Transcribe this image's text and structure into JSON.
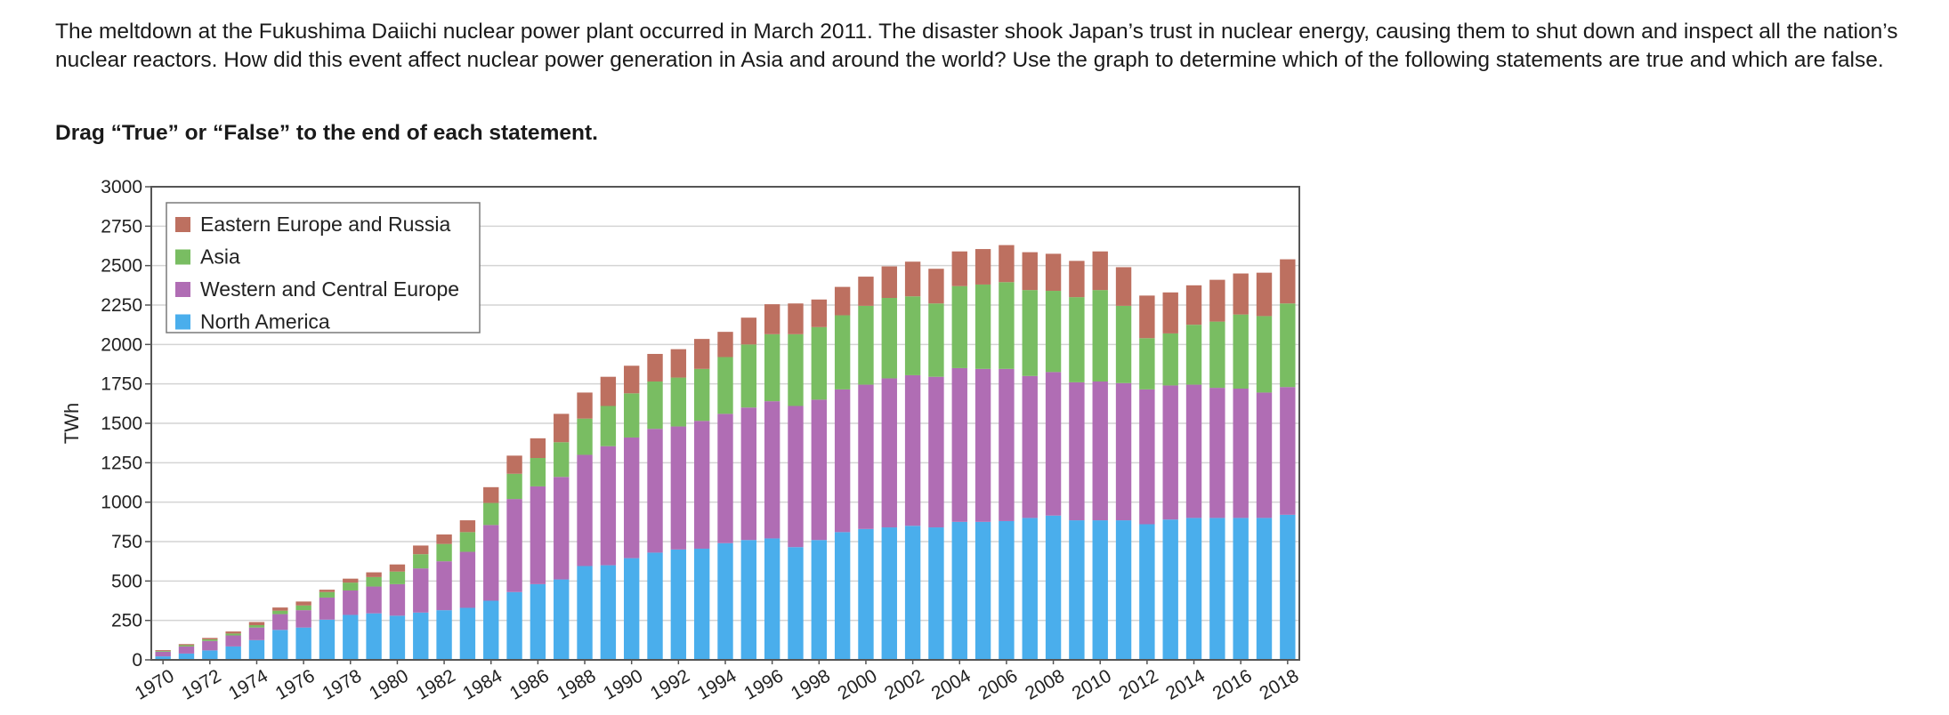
{
  "question": {
    "intro": "The meltdown at the Fukushima Daiichi nuclear power plant occurred in March 2011. The disaster shook Japan’s trust in nuclear energy, causing them to shut down and inspect all the nation’s nuclear reactors. How did this event affect nuclear power generation in Asia and around the world? Use the graph to determine which of the following statements are true and which are false.",
    "instruction": "Drag “True” or “False” to the end of each statement."
  },
  "chart_data": {
    "type": "bar",
    "stacked": true,
    "ylabel": "TWh",
    "xlabel": "",
    "ylim": [
      0,
      3000
    ],
    "yticks": [
      0,
      250,
      500,
      750,
      1000,
      1250,
      1500,
      1750,
      2000,
      2250,
      2500,
      2750,
      3000
    ],
    "grid": true,
    "legend_position": "top-left",
    "categories": [
      "1970",
      "1971",
      "1972",
      "1973",
      "1974",
      "1975",
      "1976",
      "1977",
      "1978",
      "1979",
      "1980",
      "1981",
      "1982",
      "1983",
      "1984",
      "1985",
      "1986",
      "1987",
      "1988",
      "1989",
      "1990",
      "1991",
      "1992",
      "1993",
      "1994",
      "1995",
      "1996",
      "1997",
      "1998",
      "1999",
      "2000",
      "2001",
      "2002",
      "2003",
      "2004",
      "2005",
      "2006",
      "2007",
      "2008",
      "2009",
      "2010",
      "2011",
      "2012",
      "2013",
      "2014",
      "2015",
      "2016",
      "2017",
      "2018"
    ],
    "xtick_labels": [
      "1970",
      "1972",
      "1974",
      "1976",
      "1978",
      "1980",
      "1982",
      "1984",
      "1986",
      "1988",
      "1990",
      "1992",
      "1994",
      "1996",
      "1998",
      "2000",
      "2002",
      "2004",
      "2006",
      "2008",
      "2010",
      "2012",
      "2014",
      "2016",
      "2018"
    ],
    "series": [
      {
        "name": "North America",
        "color": "#4aaeec",
        "values": [
          22,
          40,
          60,
          85,
          125,
          190,
          205,
          255,
          285,
          295,
          280,
          300,
          315,
          330,
          375,
          430,
          480,
          510,
          595,
          600,
          645,
          680,
          700,
          705,
          740,
          760,
          770,
          715,
          760,
          810,
          830,
          840,
          850,
          840,
          875,
          875,
          880,
          900,
          915,
          885,
          885,
          885,
          860,
          890,
          900,
          900,
          900,
          900,
          920
        ]
      },
      {
        "name": "Western and Central Europe",
        "color": "#b06db4",
        "values": [
          30,
          45,
          60,
          70,
          80,
          100,
          110,
          140,
          155,
          170,
          200,
          280,
          310,
          355,
          480,
          590,
          620,
          650,
          705,
          755,
          765,
          785,
          780,
          810,
          820,
          840,
          870,
          895,
          890,
          905,
          915,
          945,
          955,
          955,
          975,
          970,
          965,
          900,
          910,
          875,
          880,
          870,
          855,
          850,
          845,
          825,
          820,
          795,
          810
        ]
      },
      {
        "name": "Asia",
        "color": "#79bd62",
        "values": [
          5,
          8,
          10,
          12,
          15,
          22,
          30,
          35,
          50,
          60,
          80,
          90,
          110,
          125,
          140,
          160,
          180,
          220,
          230,
          255,
          280,
          300,
          310,
          330,
          360,
          400,
          425,
          455,
          460,
          470,
          500,
          510,
          500,
          465,
          520,
          535,
          550,
          545,
          515,
          540,
          580,
          490,
          325,
          330,
          380,
          420,
          470,
          485,
          530
        ]
      },
      {
        "name": "Eastern Europe and Russia",
        "color": "#bd7060",
        "values": [
          5,
          7,
          9,
          13,
          20,
          20,
          25,
          15,
          25,
          30,
          45,
          55,
          60,
          75,
          100,
          115,
          125,
          180,
          165,
          185,
          175,
          175,
          180,
          190,
          160,
          170,
          190,
          195,
          175,
          180,
          185,
          200,
          220,
          220,
          220,
          225,
          235,
          240,
          235,
          230,
          245,
          245,
          270,
          260,
          250,
          265,
          260,
          275,
          280
        ]
      }
    ]
  }
}
